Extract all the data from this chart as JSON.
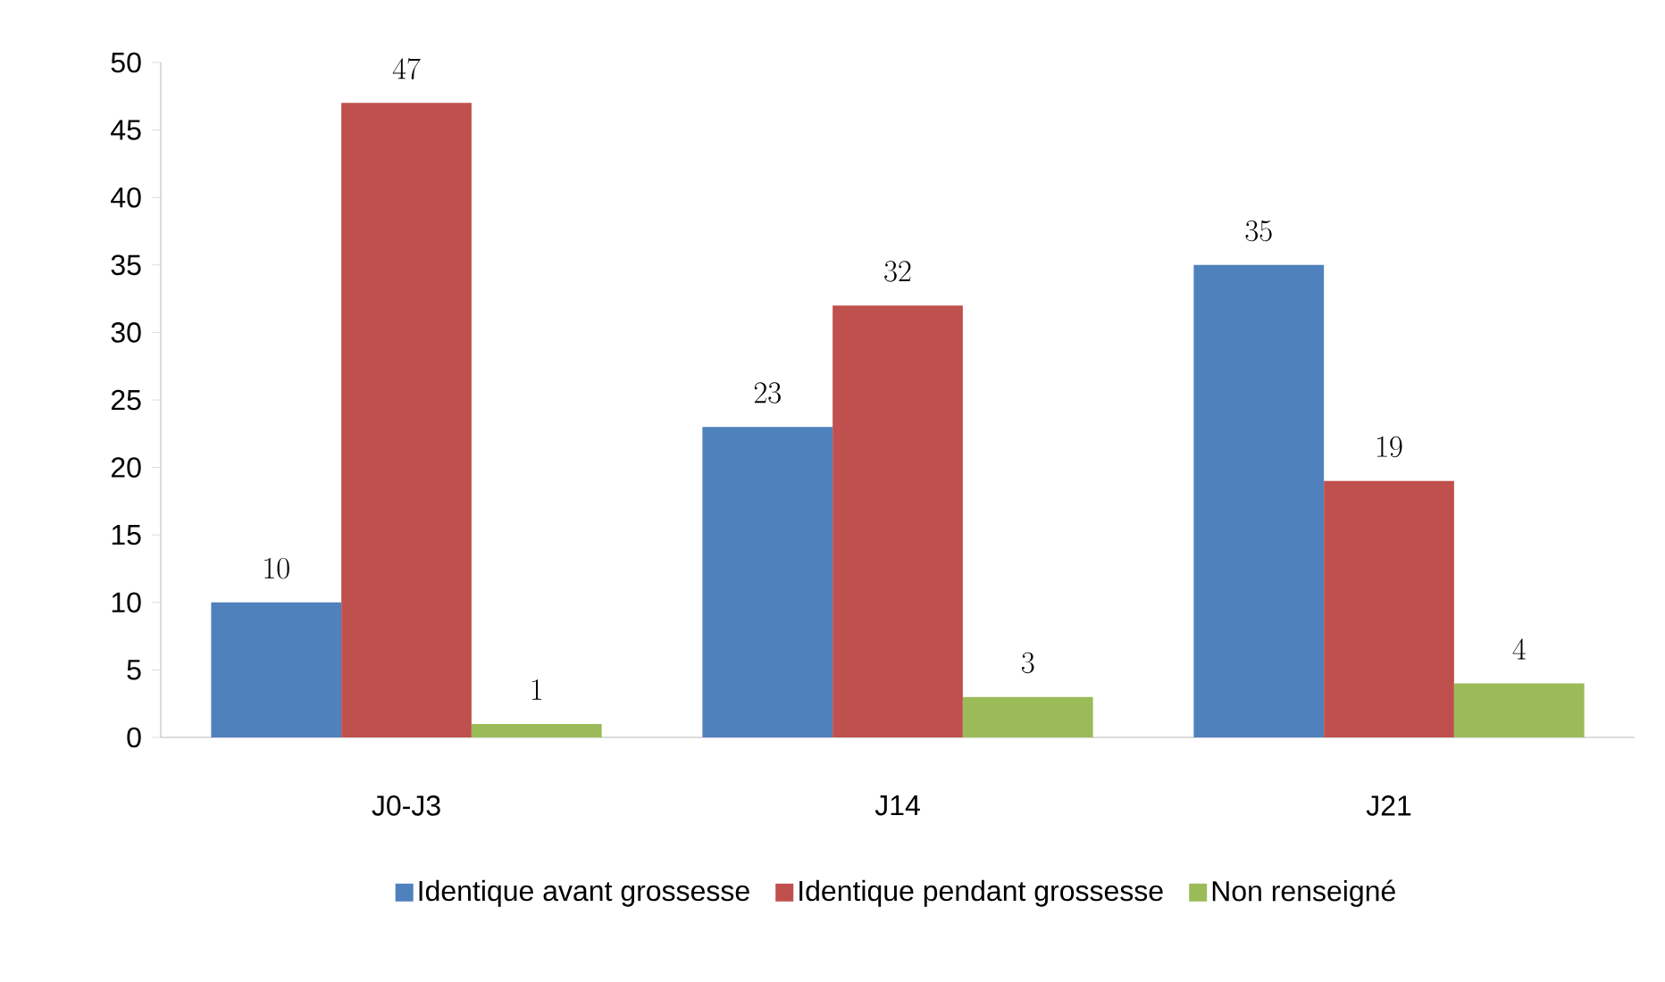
{
  "chart_data": {
    "type": "bar",
    "categories": [
      "J0-J3",
      "J14",
      "J21"
    ],
    "series": [
      {
        "name": "Identique avant grossesse",
        "color": "#4f81bd",
        "values": [
          10,
          23,
          35
        ]
      },
      {
        "name": "Identique pendant grossesse",
        "color": "#c0504d",
        "values": [
          47,
          32,
          19
        ]
      },
      {
        "name": "Non renseigné",
        "color": "#9bbb59",
        "values": [
          1,
          3,
          4
        ]
      }
    ],
    "ylim": [
      0,
      50
    ],
    "yticks": [
      0,
      5,
      10,
      15,
      20,
      25,
      30,
      35,
      40,
      45,
      50
    ],
    "grid": false,
    "legend": "bottom",
    "data_labels": true
  }
}
